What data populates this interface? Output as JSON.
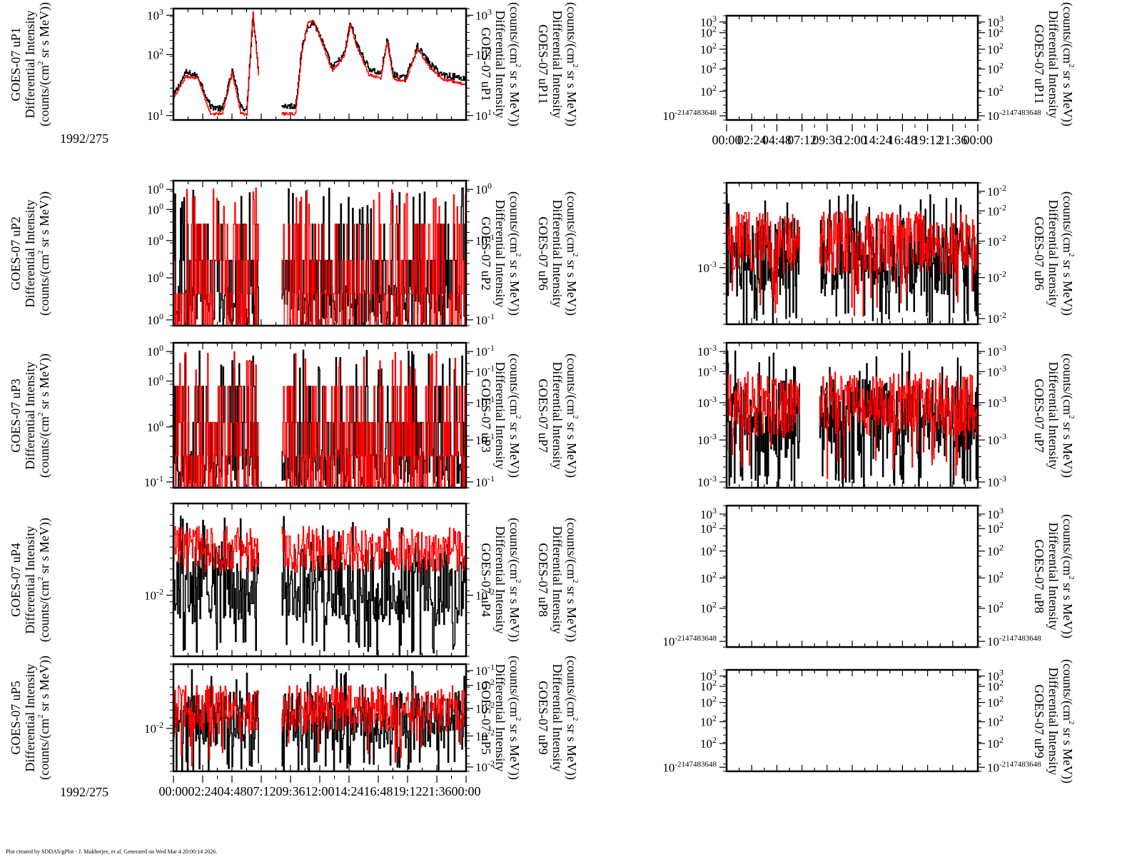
{
  "chart_data": [
    {
      "type": "line",
      "id": "uP1",
      "column": "left",
      "left_label": [
        "GOES-07 uP1",
        "Differential Intensity",
        "(counts/(cm^2 sr s MeV))"
      ],
      "right_label": [
        "GOES-07 uP11",
        "Differential Intensity",
        "(counts/(cm^2 sr s MeV))"
      ],
      "inner_right_label": [
        "GOES-07 uP1",
        "Differential Intensity",
        "(counts/(cm^2 sr s MeV))"
      ],
      "yscale": "log",
      "ylim": [
        2,
        3000
      ],
      "left_ticks": [
        {
          "v": 1000,
          "label": "10",
          "exp": "3"
        },
        {
          "v": 100,
          "label": "10",
          "exp": "2"
        },
        {
          "v": 10,
          "label": "10",
          "exp": "1"
        }
      ],
      "right_ticks": [
        {
          "v": 1000,
          "label": "10",
          "exp": "3"
        },
        {
          "v": 100,
          "label": "10",
          "exp": "2"
        },
        {
          "v": 10,
          "label": "10",
          "exp": "1"
        }
      ],
      "date_label": "1992/275",
      "gap_hours": [
        7.0,
        8.8
      ],
      "series": [
        {
          "name": "black",
          "color": "#000000",
          "profile_hours": [
            0,
            1,
            2,
            3,
            4,
            4.8,
            5.5,
            6.0,
            6.5,
            7.0,
            8.8,
            10,
            10.5,
            11,
            11.5,
            12,
            13,
            14,
            14.5,
            15,
            16,
            17,
            17.5,
            18,
            19,
            20,
            21,
            22,
            24
          ],
          "profile_values": [
            10,
            45,
            35,
            5,
            4,
            50,
            5,
            4,
            2000,
            40,
            5,
            5,
            200,
            1000,
            1200,
            500,
            60,
            150,
            1200,
            300,
            60,
            40,
            400,
            40,
            30,
            250,
            80,
            40,
            30
          ]
        },
        {
          "name": "red",
          "color": "#ff0000",
          "profile_hours": [
            0,
            1,
            2,
            3,
            4,
            4.8,
            5.5,
            6.0,
            6.5,
            7.0,
            8.8,
            10,
            10.5,
            11,
            11.5,
            12,
            13,
            14,
            14.5,
            15,
            16,
            17,
            17.5,
            18,
            19,
            20,
            21,
            22,
            24
          ],
          "profile_values": [
            8,
            35,
            30,
            3,
            3,
            45,
            3,
            3,
            2500,
            30,
            3,
            3,
            150,
            1200,
            1300,
            450,
            50,
            130,
            1100,
            250,
            40,
            30,
            380,
            30,
            25,
            220,
            60,
            30,
            20
          ]
        }
      ]
    },
    {
      "type": "line",
      "id": "uP2",
      "column": "left",
      "left_label": [
        "GOES-07 uP2",
        "Differential Intensity",
        "(counts/(cm^2 sr s MeV))"
      ],
      "inner_right_label": [
        "GOES-07 uP2",
        "Differential Intensity",
        "(counts/(cm^2 sr s MeV))"
      ],
      "outer_right_label": [
        "GOES-07 uP6",
        "Differential Intensity",
        "(counts/(cm^2 sr s MeV))"
      ],
      "yscale": "log",
      "left_ticks": [
        {
          "label": "10",
          "exp": "0"
        },
        {
          "label": "10",
          "exp": "0"
        },
        {
          "label": "10",
          "exp": "0"
        },
        {
          "label": "10",
          "exp": "0"
        },
        {
          "label": "10",
          "exp": "0"
        }
      ],
      "right_ticks": [
        {
          "label": "10",
          "exp": "0"
        },
        {
          "label": "10",
          "exp": "-1"
        },
        {
          "label": "10",
          "exp": "-1"
        }
      ],
      "gap_hours": [
        7.0,
        8.8
      ],
      "series": [
        {
          "name": "black",
          "color": "#000000",
          "style": "sparse-spikes"
        },
        {
          "name": "red",
          "color": "#ff0000",
          "style": "sparse-spikes"
        }
      ]
    },
    {
      "type": "line",
      "id": "uP3",
      "column": "left",
      "left_label": [
        "GOES-07 uP3",
        "Differential Intensity",
        "(counts/(cm^2 sr s MeV))"
      ],
      "inner_right_label": [
        "GOES-07 uP3",
        "Differential Intensity",
        "(counts/(cm^2 sr s MeV))"
      ],
      "outer_right_label": [
        "GOES-07 uP7",
        "Differential Intensity",
        "(counts/(cm^2 sr s MeV))"
      ],
      "yscale": "log",
      "left_ticks": [
        {
          "label": "10",
          "exp": "0"
        },
        {
          "label": "10",
          "exp": "0"
        },
        {
          "label": "10",
          "exp": "0"
        },
        {
          "label": "10",
          "exp": "-1"
        }
      ],
      "right_ticks": [
        {
          "label": "10",
          "exp": "-1"
        },
        {
          "label": "10",
          "exp": "-1"
        },
        {
          "label": "10",
          "exp": "-1"
        },
        {
          "label": "10",
          "exp": "-1"
        },
        {
          "label": "10",
          "exp": "-1"
        }
      ],
      "gap_hours": [
        7.0,
        8.8
      ],
      "series": [
        {
          "name": "black",
          "color": "#000000",
          "style": "sparse-spikes"
        },
        {
          "name": "red",
          "color": "#ff0000",
          "style": "sparse-spikes"
        }
      ]
    },
    {
      "type": "line",
      "id": "uP4",
      "column": "left",
      "left_label": [
        "GOES-07 uP4",
        "Differential Intensity",
        "(counts/(cm^2 sr s MeV))"
      ],
      "inner_right_label": [
        "GOES-07 uP4",
        "Differential Intensity",
        "(counts/(cm^2 sr s MeV))"
      ],
      "outer_right_label": [
        "GOES-07 uP8",
        "Differential Intensity",
        "(counts/(cm^2 sr s MeV))"
      ],
      "yscale": "log",
      "left_ticks": [
        {
          "label": "10",
          "exp": "-2"
        }
      ],
      "right_ticks": [
        {
          "label": "10",
          "exp": "-2"
        }
      ],
      "gap_hours": [
        7.0,
        8.8
      ],
      "series": [
        {
          "name": "black",
          "color": "#000000",
          "style": "dense-noise"
        },
        {
          "name": "red",
          "color": "#ff0000",
          "style": "upper-noise"
        }
      ]
    },
    {
      "type": "line",
      "id": "uP5",
      "column": "left",
      "left_label": [
        "GOES-07 uP5",
        "Differential Intensity",
        "(counts/(cm^2 sr s MeV))"
      ],
      "inner_right_label": [
        "GOES-07 uP5",
        "Differential Intensity",
        "(counts/(cm^2 sr s MeV))"
      ],
      "outer_right_label": [
        "GOES-07 uP9",
        "Differential Intensity",
        "(counts/(cm^2 sr s MeV))"
      ],
      "yscale": "log",
      "left_ticks": [
        {
          "label": "10",
          "exp": "-2"
        }
      ],
      "right_ticks": [
        {
          "label": "10",
          "exp": "-1"
        },
        {
          "label": "10",
          "exp": "-2"
        },
        {
          "label": "10",
          "exp": "-2"
        },
        {
          "label": "10",
          "exp": "-2"
        },
        {
          "label": "10",
          "exp": "-2"
        }
      ],
      "gap_hours": [
        7.0,
        8.8
      ],
      "date_label": "1992/275",
      "x_ticks": [
        "00:00",
        "02:24",
        "04:48",
        "07:12",
        "09:36",
        "12:00",
        "14:24",
        "16:48",
        "19:12",
        "21:36",
        "00:00"
      ],
      "series": [
        {
          "name": "black",
          "color": "#000000",
          "style": "dense-noise"
        },
        {
          "name": "red",
          "color": "#ff0000",
          "style": "mid-noise"
        }
      ]
    },
    {
      "type": "line",
      "id": "uP11",
      "column": "right",
      "right_label": [
        "GOES-07 uP11",
        "Differential Intensity",
        "(counts/(cm^2 sr s MeV))"
      ],
      "yscale": "log",
      "left_ticks": [
        {
          "label": "10",
          "exp": "3"
        },
        {
          "label": "10",
          "exp": "2"
        },
        {
          "label": "10",
          "exp": "2"
        },
        {
          "label": "10",
          "exp": "2"
        },
        {
          "label": "10",
          "exp": "2"
        },
        {
          "label": "10",
          "exp": "-2147483648"
        }
      ],
      "right_ticks": [
        {
          "label": "10",
          "exp": "3"
        },
        {
          "label": "10",
          "exp": "2"
        },
        {
          "label": "10",
          "exp": "2"
        },
        {
          "label": "10",
          "exp": "2"
        },
        {
          "label": "10",
          "exp": "2"
        },
        {
          "label": "10",
          "exp": "-2147483648"
        }
      ],
      "x_ticks": [
        "00:00",
        "02:24",
        "04:48",
        "07:12",
        "09:36",
        "12:00",
        "14:24",
        "16:48",
        "19:12",
        "21:36",
        "00:00"
      ],
      "series": []
    },
    {
      "type": "line",
      "id": "uP6",
      "column": "right",
      "right_label": [
        "GOES-07 uP6",
        "Differential Intensity",
        "(counts/(cm^2 sr s MeV))"
      ],
      "yscale": "log",
      "left_ticks": [
        {
          "label": "10",
          "exp": "-3"
        }
      ],
      "right_ticks": [
        {
          "label": "10",
          "exp": "-2"
        },
        {
          "label": "10",
          "exp": "-2"
        },
        {
          "label": "10",
          "exp": "-2"
        },
        {
          "label": "10",
          "exp": "-2"
        },
        {
          "label": "10",
          "exp": "-2"
        }
      ],
      "gap_hours": [
        7.0,
        8.8
      ],
      "series": [
        {
          "name": "black",
          "color": "#000000",
          "style": "dense-noise"
        },
        {
          "name": "red",
          "color": "#ff0000",
          "style": "mid-noise"
        }
      ]
    },
    {
      "type": "line",
      "id": "uP7",
      "column": "right",
      "right_label": [
        "GOES-07 uP7",
        "Differential Intensity",
        "(counts/(cm^2 sr s MeV))"
      ],
      "yscale": "log",
      "left_ticks": [
        {
          "label": "10",
          "exp": "-3"
        },
        {
          "label": "10",
          "exp": "-3"
        },
        {
          "label": "10",
          "exp": "-3"
        },
        {
          "label": "10",
          "exp": "-3"
        },
        {
          "label": "10",
          "exp": "-3"
        }
      ],
      "right_ticks": [
        {
          "label": "10",
          "exp": "-3"
        },
        {
          "label": "10",
          "exp": "-3"
        },
        {
          "label": "10",
          "exp": "-3"
        },
        {
          "label": "10",
          "exp": "-3"
        },
        {
          "label": "10",
          "exp": "-3"
        }
      ],
      "gap_hours": [
        7.0,
        8.8
      ],
      "series": [
        {
          "name": "black",
          "color": "#000000",
          "style": "dense-noise"
        },
        {
          "name": "red",
          "color": "#ff0000",
          "style": "mid-noise"
        }
      ]
    },
    {
      "type": "line",
      "id": "uP8",
      "column": "right",
      "right_label": [
        "GOES-07 uP8",
        "Differential Intensity",
        "(counts/(cm^2 sr s MeV))"
      ],
      "yscale": "log",
      "left_ticks": [
        {
          "label": "10",
          "exp": "3"
        },
        {
          "label": "10",
          "exp": "2"
        },
        {
          "label": "10",
          "exp": "2"
        },
        {
          "label": "10",
          "exp": "2"
        },
        {
          "label": "10",
          "exp": "2"
        },
        {
          "label": "10",
          "exp": "-2147483648"
        }
      ],
      "right_ticks": [
        {
          "label": "10",
          "exp": "3"
        },
        {
          "label": "10",
          "exp": "2"
        },
        {
          "label": "10",
          "exp": "2"
        },
        {
          "label": "10",
          "exp": "2"
        },
        {
          "label": "10",
          "exp": "2"
        },
        {
          "label": "10",
          "exp": "-2147483648"
        }
      ],
      "series": []
    },
    {
      "type": "line",
      "id": "uP9",
      "column": "right",
      "right_label": [
        "GOES-07 uP9",
        "Differential Intensity",
        "(counts/(cm^2 sr s MeV))"
      ],
      "yscale": "log",
      "left_ticks": [
        {
          "label": "10",
          "exp": "3"
        },
        {
          "label": "10",
          "exp": "2"
        },
        {
          "label": "10",
          "exp": "2"
        },
        {
          "label": "10",
          "exp": "2"
        },
        {
          "label": "10",
          "exp": "2"
        },
        {
          "label": "10",
          "exp": "-2147483648"
        }
      ],
      "right_ticks": [
        {
          "label": "10",
          "exp": "3"
        },
        {
          "label": "10",
          "exp": "2"
        },
        {
          "label": "10",
          "exp": "2"
        },
        {
          "label": "10",
          "exp": "2"
        },
        {
          "label": "10",
          "exp": "2"
        },
        {
          "label": "10",
          "exp": "-2147483648"
        }
      ],
      "series": []
    }
  ],
  "x_axis": {
    "tick_labels": [
      "00:00",
      "02:24",
      "04:48",
      "07:12",
      "09:36",
      "12:00",
      "14:24",
      "16:48",
      "19:12",
      "21:36",
      "00:00"
    ],
    "range_hours": [
      0,
      24
    ],
    "date_label": "1992/275"
  },
  "footer": "Plot created by SDDAS/gPlot - J. Mukherjee, et al.  Generated on Wed Mar 4 20:00:14 2026."
}
